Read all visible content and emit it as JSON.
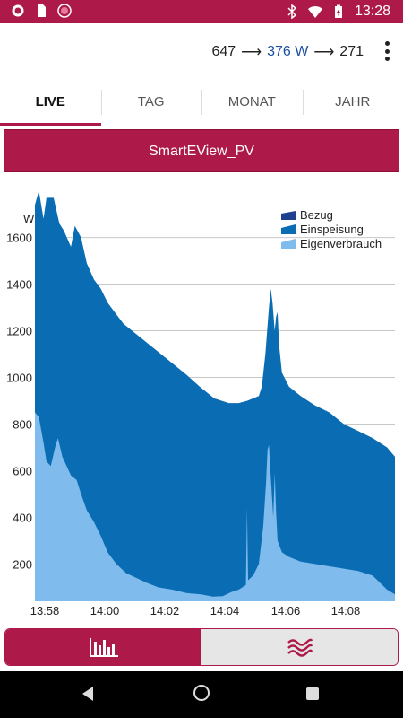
{
  "status": {
    "time": "13:28",
    "icons": [
      "gear-icon",
      "sd-card-icon",
      "record-icon",
      "bluetooth-icon",
      "wifi-icon",
      "battery-charging-icon"
    ]
  },
  "header": {
    "value_left": "647",
    "value_mid": "376 W",
    "value_right": "271",
    "arrow": "⟶"
  },
  "tabs": [
    "LIVE",
    "TAG",
    "MONAT",
    "JAHR"
  ],
  "banner": "SmartEView_PV",
  "colors": {
    "brand": "#ad1a4a",
    "bezug": "#1f3f8f",
    "einspeisung": "#0a6db3",
    "eigenverbrauch": "#7fbbec"
  },
  "chart_data": {
    "type": "area",
    "ylabel": "W",
    "y_ticks": [
      "200",
      "400",
      "600",
      "800",
      "1000",
      "1200",
      "1400",
      "1600"
    ],
    "x_ticks": [
      "13:58",
      "14:00",
      "14:02",
      "14:04",
      "14:06",
      "14:08"
    ],
    "ylim": [
      40,
      1810
    ],
    "legend": [
      "Bezug",
      "Einspeisung",
      "Eigenverbrauch"
    ],
    "legend_position": "top-right",
    "grid": true,
    "series": [
      {
        "name": "Gesamt (Einspeisung + Eigenverbrauch)",
        "x": [
          0,
          0.2,
          0.3,
          0.5,
          0.7,
          0.95,
          1.1,
          1.2,
          1.3,
          1.45,
          1.6,
          1.8,
          2.0,
          2.4,
          2.8,
          3.0,
          3.2,
          3.6,
          4.0,
          4.4,
          4.8,
          5.2,
          5.6,
          6.0,
          6.4,
          6.8,
          7.2,
          7.6,
          8.0,
          8.4,
          8.8,
          9.2,
          9.6,
          9.8,
          10.0,
          10.2,
          10.4,
          10.5,
          10.6,
          10.65,
          10.7,
          10.8,
          10.9,
          11.0,
          11.05,
          11.1,
          11.2,
          11.4,
          11.6,
          12.0,
          12.4,
          12.8,
          13.2,
          13.6,
          14.0,
          14.4,
          14.8,
          15.2,
          15.6,
          16.0,
          16.4,
          16.8,
          17.2,
          17.6,
          18.0,
          18.3,
          18.6,
          19.0,
          19.4,
          19.8,
          20.2,
          20.6,
          21.0,
          21.4,
          21.8,
          22.2,
          22.6,
          23.0,
          23.4,
          23.8,
          24.2,
          24.6,
          25.0,
          25.4,
          25.8,
          26.2,
          26.6,
          27.0,
          27.4,
          27.8,
          28.2,
          28.6,
          29.0,
          29.4,
          29.8,
          30.2,
          30.6,
          31.0,
          31.4,
          31.8,
          32.2,
          32.6,
          33.0,
          33.4,
          33.8,
          34.2,
          34.6,
          35.0,
          35.4,
          35.8,
          36.2,
          36.6,
          37.0,
          37.4,
          37.8,
          38.2,
          38.6,
          39.0,
          39.4,
          39.8,
          40.2,
          40.6,
          41.0,
          41.4,
          41.8,
          42.2,
          42.6,
          43.0,
          43.4,
          43.8,
          44.2,
          44.6,
          45.0,
          45.4,
          45.8,
          46.2,
          46.6,
          47.0,
          47.4,
          47.8,
          48.2,
          48.6,
          49.0,
          49.4,
          49.8,
          50.2,
          50.6,
          51.0,
          51.4,
          51.8,
          52.2,
          52.6,
          53.0,
          53.4,
          53.8,
          54.2,
          54.6,
          55.0,
          55.4,
          55.8,
          56.2,
          56.6,
          57.0,
          57.4,
          57.8,
          58.2,
          58.6,
          59.0,
          59.4,
          59.8,
          60.2,
          60.6,
          61.0,
          61.4,
          61.8,
          62.2,
          62.6,
          63.0,
          63.4,
          63.8,
          64.2,
          64.6,
          65.0,
          65.4,
          65.8,
          66.2,
          66.6,
          67.0,
          67.4,
          67.8,
          68.2,
          68.6,
          69.0,
          69.4,
          69.8,
          70.2,
          70.6,
          71.0,
          71.4,
          71.8,
          72.2,
          72.6,
          73.0,
          73.4,
          73.8,
          74.2,
          74.6,
          75.0,
          75.4,
          75.8,
          76.2,
          76.6,
          77.0,
          77.4,
          77.8,
          78.2,
          78.6,
          79.0,
          79.4,
          79.8,
          80.2,
          80.6,
          81.0,
          81.4,
          81.8,
          82.2,
          82.6,
          83.0,
          83.4,
          83.8,
          84.2,
          84.6,
          85.0,
          85.4,
          85.8,
          86.2,
          86.6,
          87.0,
          87.4,
          87.8,
          88.2,
          88.6,
          89.0,
          89.4,
          89.8,
          90.2,
          90.6,
          91.0,
          91.4,
          91.8,
          92.2,
          92.6,
          93.0,
          93.4,
          93.8,
          94.2,
          94.6,
          95.0,
          95.4,
          95.8,
          96.2,
          96.6,
          97.0,
          97.4,
          97.8,
          98.2,
          98.6,
          99.0,
          99.4,
          99.8,
          100
        ],
        "pts": [
          [
            0,
            1740
          ],
          [
            1.1,
            1800
          ],
          [
            2.4,
            1680
          ],
          [
            3.2,
            1770
          ],
          [
            5.2,
            1770
          ],
          [
            6.8,
            1660
          ],
          [
            8.0,
            1630
          ],
          [
            10.0,
            1560
          ],
          [
            11.1,
            1650
          ],
          [
            12.8,
            1600
          ],
          [
            14.4,
            1490
          ],
          [
            16.4,
            1420
          ],
          [
            18.3,
            1380
          ],
          [
            20.2,
            1320
          ],
          [
            22.6,
            1270
          ],
          [
            24.6,
            1230
          ],
          [
            27.0,
            1200
          ],
          [
            30.2,
            1160
          ],
          [
            34.2,
            1110
          ],
          [
            38.2,
            1060
          ],
          [
            42.2,
            1010
          ],
          [
            45.8,
            960
          ],
          [
            49.8,
            910
          ],
          [
            53.8,
            890
          ],
          [
            56.6,
            890
          ],
          [
            59.0,
            900
          ],
          [
            60.6,
            910
          ],
          [
            62.2,
            920
          ],
          [
            63.0,
            960
          ],
          [
            64.0,
            1100
          ],
          [
            65.0,
            1300
          ],
          [
            65.5,
            1380
          ],
          [
            66.0,
            1320
          ],
          [
            66.6,
            1200
          ],
          [
            67.0,
            1260
          ],
          [
            67.4,
            1280
          ],
          [
            67.8,
            1140
          ],
          [
            68.6,
            1020
          ],
          [
            70.6,
            960
          ],
          [
            73.8,
            920
          ],
          [
            77.8,
            880
          ],
          [
            81.8,
            850
          ],
          [
            85.8,
            800
          ],
          [
            89.8,
            770
          ],
          [
            93.8,
            740
          ],
          [
            97.8,
            700
          ],
          [
            100,
            660
          ]
        ]
      },
      {
        "name": "Eigenverbrauch",
        "pts": [
          [
            0,
            850
          ],
          [
            1.1,
            830
          ],
          [
            2.4,
            720
          ],
          [
            3.2,
            640
          ],
          [
            4.4,
            620
          ],
          [
            5.6,
            700
          ],
          [
            6.4,
            740
          ],
          [
            7.6,
            660
          ],
          [
            8.8,
            620
          ],
          [
            10.0,
            580
          ],
          [
            11.6,
            560
          ],
          [
            12.8,
            500
          ],
          [
            14.4,
            430
          ],
          [
            16.4,
            380
          ],
          [
            18.3,
            320
          ],
          [
            20.2,
            250
          ],
          [
            22.6,
            200
          ],
          [
            25.4,
            160
          ],
          [
            28.2,
            140
          ],
          [
            31.0,
            120
          ],
          [
            34.2,
            100
          ],
          [
            38.2,
            90
          ],
          [
            42.2,
            75
          ],
          [
            46.2,
            70
          ],
          [
            49.4,
            60
          ],
          [
            52.2,
            62
          ],
          [
            54.6,
            80
          ],
          [
            56.6,
            90
          ],
          [
            58.6,
            110
          ],
          [
            58.9,
            440
          ],
          [
            59.2,
            130
          ],
          [
            60.6,
            150
          ],
          [
            62.2,
            200
          ],
          [
            63.4,
            360
          ],
          [
            64.2,
            550
          ],
          [
            64.6,
            690
          ],
          [
            65.0,
            710
          ],
          [
            65.4,
            600
          ],
          [
            66.2,
            400
          ],
          [
            66.6,
            590
          ],
          [
            67.0,
            420
          ],
          [
            67.4,
            300
          ],
          [
            68.6,
            250
          ],
          [
            70.6,
            230
          ],
          [
            73.8,
            210
          ],
          [
            77.8,
            200
          ],
          [
            81.8,
            190
          ],
          [
            85.8,
            180
          ],
          [
            89.8,
            170
          ],
          [
            93.8,
            150
          ],
          [
            97.8,
            90
          ],
          [
            100,
            70
          ]
        ]
      }
    ]
  }
}
